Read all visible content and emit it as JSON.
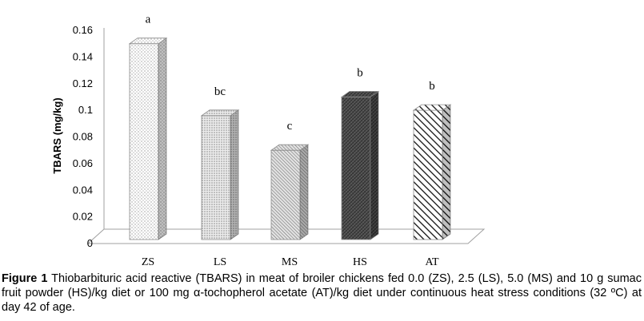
{
  "chart_data": {
    "type": "bar",
    "categories": [
      "ZS",
      "LS",
      "MS",
      "HS",
      "AT"
    ],
    "values": [
      0.15,
      0.096,
      0.07,
      0.11,
      0.1
    ],
    "significance_letters": [
      "a",
      "bc",
      "c",
      "b",
      "b"
    ],
    "patterns": [
      "light-dots",
      "fine-dots",
      "diagonal-fine",
      "dark-crosshatch",
      "diagonal-bold"
    ],
    "title": "",
    "xlabel": "",
    "ylabel": "TBARS (mg/kg)",
    "ylim": [
      0,
      0.16
    ],
    "yticks": [
      "0",
      "0.02",
      "0.04",
      "0.06",
      "0.08",
      "0.1",
      "0.12",
      "0.14",
      "0.16"
    ],
    "grid": false,
    "legend": "none",
    "style": "3d-column"
  },
  "caption": {
    "label": "Figure 1",
    "text": " Thiobarbituric acid reactive (TBARS) in meat of broiler chickens fed 0.0 (ZS), 2.5 (LS), 5.0 (MS) and 10 g sumac fruit powder (HS)/kg diet or 100 mg α-tochopherol acetate (AT)/kg diet under continuous heat stress conditions (32 ºC) at day 42 of age."
  }
}
